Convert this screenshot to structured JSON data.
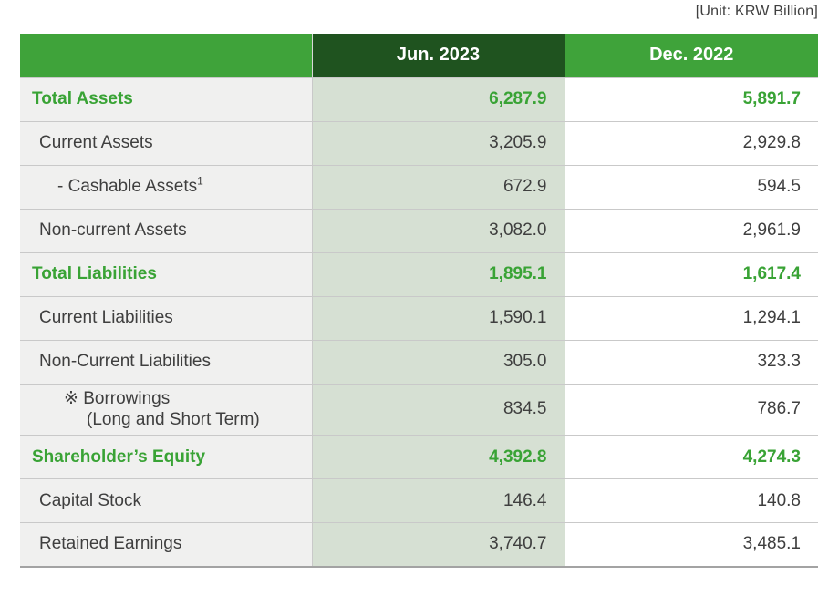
{
  "unit_label": "[Unit: KRW Billion]",
  "colors": {
    "header_green": "#3fa33a",
    "header_dark_green": "#1f531f",
    "jun_column_bg": "#d6e0d3",
    "label_column_bg": "#f0f0ef",
    "accent_green_text": "#39a335",
    "body_text": "#3f3f3f",
    "grid_line": "#c9c9c9",
    "table_bottom_border": "#a3a3a3"
  },
  "table": {
    "columns": [
      "",
      "Jun. 2023",
      "Dec. 2022"
    ],
    "rows": [
      {
        "label": "Total Assets",
        "jun": "6,287.9",
        "dec": "5,891.7",
        "style": "total",
        "indent": 0
      },
      {
        "label": "Current Assets",
        "jun": "3,205.9",
        "dec": "2,929.8",
        "style": "normal",
        "indent": 1
      },
      {
        "label": "- Cashable Assets",
        "superscript": "1",
        "jun": "672.9",
        "dec": "594.5",
        "style": "normal",
        "indent": 2
      },
      {
        "label": "Non-current Assets",
        "jun": "3,082.0",
        "dec": "2,961.9",
        "style": "normal",
        "indent": 1
      },
      {
        "label": "Total Liabilities",
        "jun": "1,895.1",
        "dec": "1,617.4",
        "style": "total",
        "indent": 0
      },
      {
        "label": "Current Liabilities",
        "jun": "1,590.1",
        "dec": "1,294.1",
        "style": "normal",
        "indent": 1
      },
      {
        "label": "Non-Current Liabilities",
        "jun": "305.0",
        "dec": "323.3",
        "style": "normal",
        "indent": 1
      },
      {
        "label": "※ Borrowings",
        "label_line2": "(Long and Short Term)",
        "jun": "834.5",
        "dec": "786.7",
        "style": "normal",
        "indent": 3
      },
      {
        "label": "Shareholder’s Equity",
        "jun": "4,392.8",
        "dec": "4,274.3",
        "style": "total",
        "indent": 0
      },
      {
        "label": "Capital Stock",
        "jun": "146.4",
        "dec": "140.8",
        "style": "normal",
        "indent": 1
      },
      {
        "label": "Retained Earnings",
        "jun": "3,740.7",
        "dec": "3,485.1",
        "style": "normal",
        "indent": 1
      }
    ]
  },
  "chart_data": {
    "type": "table",
    "title": "Statement of Financial Position",
    "unit": "KRW Billion",
    "columns": [
      "Item",
      "Jun. 2023",
      "Dec. 2022"
    ],
    "rows": [
      [
        "Total Assets",
        6287.9,
        5891.7
      ],
      [
        "Current Assets",
        3205.9,
        2929.8
      ],
      [
        "- Cashable Assets (note 1)",
        672.9,
        594.5
      ],
      [
        "Non-current Assets",
        3082.0,
        2961.9
      ],
      [
        "Total Liabilities",
        1895.1,
        1617.4
      ],
      [
        "Current Liabilities",
        1590.1,
        1294.1
      ],
      [
        "Non-Current Liabilities",
        305.0,
        323.3
      ],
      [
        "※ Borrowings (Long and Short Term)",
        834.5,
        786.7
      ],
      [
        "Shareholder’s Equity",
        4392.8,
        4274.3
      ],
      [
        "Capital Stock",
        146.4,
        140.8
      ],
      [
        "Retained Earnings",
        3740.7,
        3485.1
      ]
    ]
  }
}
